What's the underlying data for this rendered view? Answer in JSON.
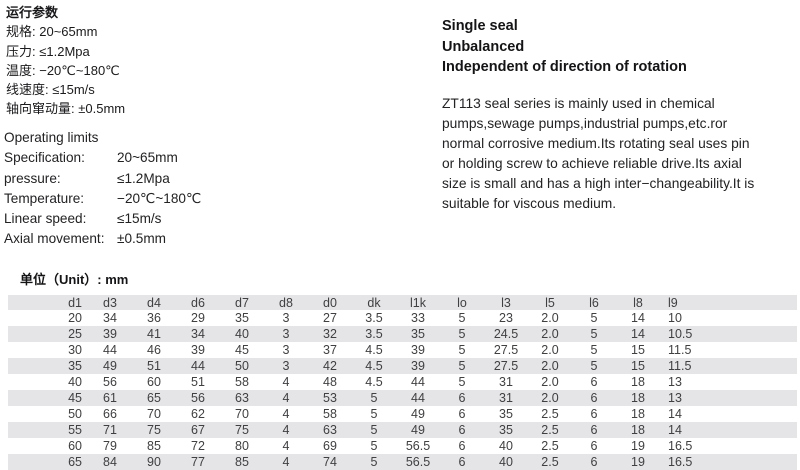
{
  "cn_params": {
    "title": "运行参数",
    "rows": [
      {
        "label": "规格: ",
        "value": "20~65mm"
      },
      {
        "label": "压力: ",
        "value": "≤1.2Mpa"
      },
      {
        "label": "温度: ",
        "value": "−20℃~180℃"
      },
      {
        "label": "线速度: ",
        "value": "≤15m/s"
      },
      {
        "label": "轴向窜动量: ",
        "value": "±0.5mm"
      }
    ]
  },
  "en_params": {
    "title": "Operating limits",
    "rows": [
      {
        "label": "Specification:",
        "value": "20~65mm"
      },
      {
        "label": "pressure:",
        "value": "≤1.2Mpa"
      },
      {
        "label": "Temperature:",
        "value": "−20℃~180℃"
      },
      {
        "label": "Linear speed:",
        "value": "≤15m/s"
      },
      {
        "label": "Axial movement:",
        "value": "±0.5mm"
      }
    ]
  },
  "features": [
    "Single seal",
    "Unbalanced",
    "Independent of direction of rotation"
  ],
  "description": "ZT113 seal series is mainly used in chemical pumps,sewage pumps,industrial pumps,etc.ror normal corrosive medium.Its rotating seal uses pin or holding screw to achieve reliable drive.Its axial size is small and has a high inter−changeability.It is suitable for viscous medium.",
  "unit_label": "单位（Unit）: mm",
  "table": {
    "headers": [
      "d1",
      "d3",
      "d4",
      "d6",
      "d7",
      "d8",
      "d0",
      "dk",
      "l1k",
      "lo",
      "l3",
      "l5",
      "l6",
      "l8",
      "l9"
    ],
    "rows": [
      [
        "20",
        "34",
        "36",
        "29",
        "35",
        "3",
        "27",
        "3.5",
        "33",
        "5",
        "23",
        "2.0",
        "5",
        "14",
        "10"
      ],
      [
        "25",
        "39",
        "41",
        "34",
        "40",
        "3",
        "32",
        "3.5",
        "35",
        "5",
        "24.5",
        "2.0",
        "5",
        "14",
        "10.5"
      ],
      [
        "30",
        "44",
        "46",
        "39",
        "45",
        "3",
        "37",
        "4.5",
        "39",
        "5",
        "27.5",
        "2.0",
        "5",
        "15",
        "11.5"
      ],
      [
        "35",
        "49",
        "51",
        "44",
        "50",
        "3",
        "42",
        "4.5",
        "39",
        "5",
        "27.5",
        "2.0",
        "5",
        "15",
        "11.5"
      ],
      [
        "40",
        "56",
        "60",
        "51",
        "58",
        "4",
        "48",
        "4.5",
        "44",
        "5",
        "31",
        "2.0",
        "6",
        "18",
        "13"
      ],
      [
        "45",
        "61",
        "65",
        "56",
        "63",
        "4",
        "53",
        "5",
        "44",
        "6",
        "31",
        "2.0",
        "6",
        "18",
        "13"
      ],
      [
        "50",
        "66",
        "70",
        "62",
        "70",
        "4",
        "58",
        "5",
        "49",
        "6",
        "35",
        "2.5",
        "6",
        "18",
        "14"
      ],
      [
        "55",
        "71",
        "75",
        "67",
        "75",
        "4",
        "63",
        "5",
        "49",
        "6",
        "35",
        "2.5",
        "6",
        "18",
        "14"
      ],
      [
        "60",
        "79",
        "85",
        "72",
        "80",
        "4",
        "69",
        "5",
        "56.5",
        "6",
        "40",
        "2.5",
        "6",
        "19",
        "16.5"
      ],
      [
        "65",
        "84",
        "90",
        "77",
        "85",
        "4",
        "74",
        "5",
        "56.5",
        "6",
        "40",
        "2.5",
        "6",
        "19",
        "16.5"
      ]
    ]
  },
  "colors": {
    "row_stripe": "#e5e5e7",
    "page_bg": "#ffffff",
    "text": "#1d1d1f"
  }
}
